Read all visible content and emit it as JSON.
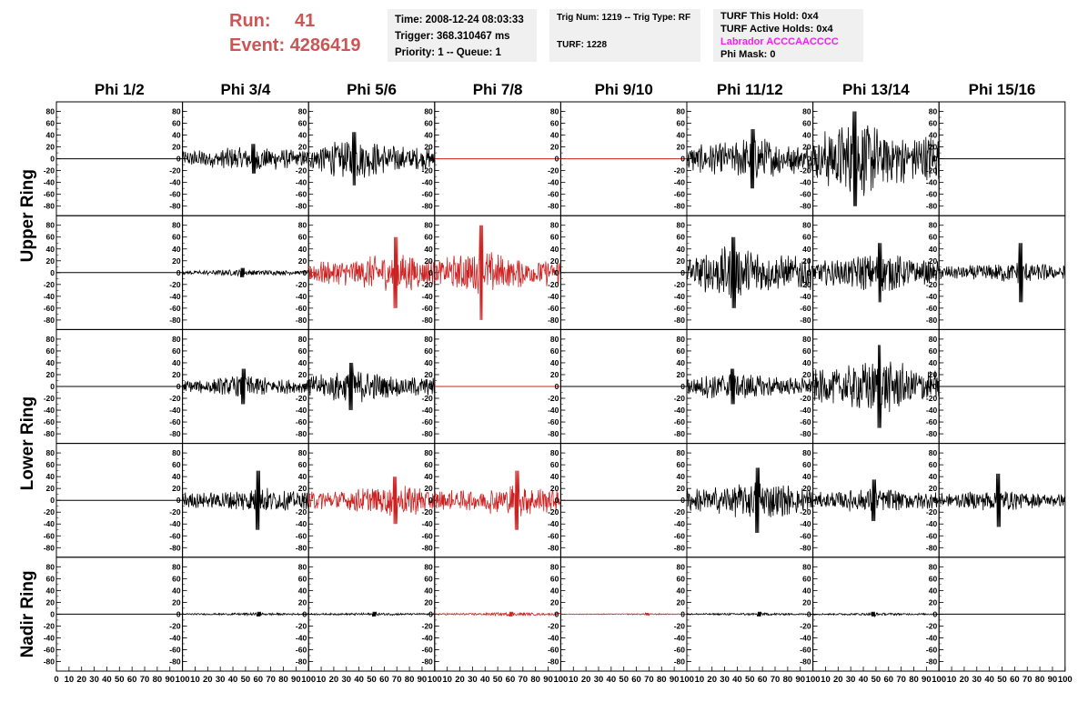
{
  "header": {
    "run_label": "Run:",
    "run_value": "41",
    "event_label": "Event:",
    "event_value": "4286419",
    "time": "Time: 2008-12-24 08:03:33",
    "trigger": "Trigger: 368.310467 ms",
    "priority": "Priority: 1 -- Queue: 1",
    "trig_num": "Trig Num: 1219 -- Trig Type: RF",
    "turf": "TURF: 1228",
    "turf_this_hold": "TURF This Hold: 0x4",
    "turf_active_holds": "TURF Active Holds: 0x4",
    "labrador": "Labrador ACCCAACCCC",
    "phi_mask": "Phi Mask: 0"
  },
  "colors": {
    "header_red": "#cc5555",
    "trace_black": "#000000",
    "trace_red": "#cc2222",
    "magenta": "#ee22ee"
  },
  "chart_data": {
    "type": "line",
    "columns": [
      "Phi 1/2",
      "Phi 3/4",
      "Phi 5/6",
      "Phi 7/8",
      "Phi 9/10",
      "Phi 11/12",
      "Phi 13/14",
      "Phi 15/16"
    ],
    "ring_labels": [
      {
        "text": "Upper Ring",
        "rows": [
          0,
          1
        ]
      },
      {
        "text": "Lower Ring",
        "rows": [
          2,
          3
        ]
      },
      {
        "text": "Nadir Ring",
        "rows": [
          4,
          4
        ]
      }
    ],
    "xlim": [
      0,
      100
    ],
    "ylim": [
      -90,
      90
    ],
    "y_ticks": [
      80,
      60,
      40,
      20,
      0,
      -20,
      -40,
      -60,
      -80
    ],
    "x_ticks_first": [
      "0",
      "10",
      "20",
      "30",
      "40",
      "50",
      "60",
      "70",
      "80",
      "90",
      "100"
    ],
    "x_ticks_other": [
      "10",
      "20",
      "30",
      "40",
      "50",
      "60",
      "70",
      "80",
      "90",
      "100"
    ],
    "grid": false,
    "amplitudes": [
      [
        0,
        12,
        18,
        0,
        0,
        20,
        35,
        0
      ],
      [
        0,
        3,
        18,
        20,
        0,
        25,
        18,
        10
      ],
      [
        0,
        10,
        15,
        0,
        0,
        13,
        25,
        0
      ],
      [
        0,
        12,
        15,
        15,
        0,
        18,
        12,
        10
      ],
      [
        0,
        1.2,
        1.2,
        1.5,
        0.6,
        1.2,
        1.2,
        0
      ]
    ],
    "peaks": [
      [
        0,
        25,
        45,
        0,
        0,
        50,
        80,
        0
      ],
      [
        0,
        8,
        60,
        80,
        0,
        60,
        50,
        50
      ],
      [
        0,
        30,
        40,
        0,
        0,
        30,
        70,
        0
      ],
      [
        0,
        50,
        40,
        50,
        0,
        55,
        35,
        45
      ],
      [
        0,
        4,
        4,
        4,
        2,
        4,
        4,
        0
      ]
    ],
    "red_traces": [
      [
        1,
        2
      ],
      [
        1,
        3
      ],
      [
        3,
        2
      ],
      [
        3,
        3
      ],
      [
        4,
        3
      ],
      [
        4,
        4
      ]
    ],
    "red_flat_lines": [
      [
        0,
        3
      ],
      [
        0,
        4
      ],
      [
        2,
        3
      ]
    ]
  }
}
